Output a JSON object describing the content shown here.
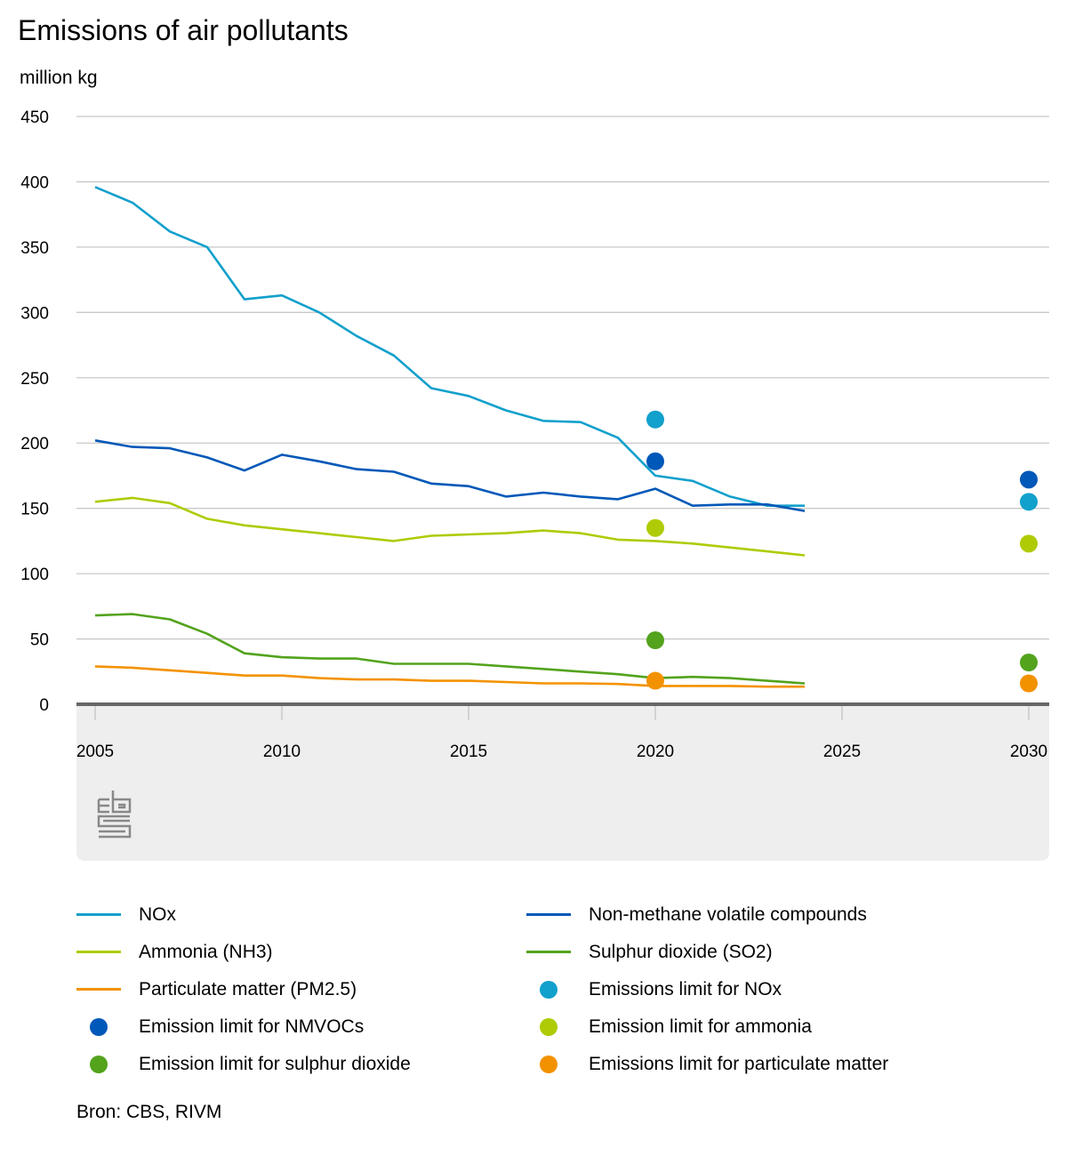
{
  "chart_data": {
    "type": "line",
    "title": "Emissions of air pollutants",
    "ylabel": "million kg",
    "xlabel": "",
    "ylim": [
      0,
      450
    ],
    "yticks": [
      "0",
      "50",
      "100",
      "150",
      "200",
      "250",
      "300",
      "350",
      "400",
      "450"
    ],
    "xlim": [
      2005,
      2030
    ],
    "xticks": [
      "2005",
      "2010",
      "2015",
      "2020",
      "2025",
      "2030"
    ],
    "grid": true,
    "legend_position": "bottom",
    "x": [
      2005,
      2006,
      2007,
      2008,
      2009,
      2010,
      2011,
      2012,
      2013,
      2014,
      2015,
      2016,
      2017,
      2018,
      2019,
      2020,
      2021,
      2022,
      2023,
      2024
    ],
    "series": [
      {
        "name": "NOx",
        "kind": "line",
        "color": "#12a0cc",
        "values": [
          396,
          384,
          362,
          350,
          310,
          313,
          300,
          282,
          267,
          242,
          236,
          225,
          217,
          216,
          204,
          175,
          171,
          159,
          152,
          152
        ]
      },
      {
        "name": "Non-methane volatile compounds",
        "kind": "line",
        "color": "#0058b8",
        "values": [
          202,
          197,
          196,
          189,
          179,
          191,
          186,
          180,
          178,
          169,
          167,
          159,
          162,
          159,
          157,
          165,
          152,
          153,
          153,
          148
        ]
      },
      {
        "name": "Ammonia (NH3)",
        "kind": "line",
        "color": "#afcb05",
        "values": [
          155,
          158,
          154,
          142,
          137,
          134,
          131,
          128,
          125,
          129,
          130,
          131,
          133,
          131,
          126,
          125,
          123,
          120,
          117,
          114
        ]
      },
      {
        "name": "Sulphur dioxide (SO2)",
        "kind": "line",
        "color": "#53a31d",
        "values": [
          68,
          69,
          65,
          54,
          39,
          36,
          35,
          35,
          31,
          31,
          31,
          29,
          27,
          25,
          23,
          20,
          21,
          20,
          18,
          16
        ]
      },
      {
        "name": "Particulate matter (PM2.5)",
        "kind": "line",
        "color": "#f39200",
        "values": [
          29,
          28,
          26,
          24,
          22,
          22,
          20,
          19,
          19,
          18,
          18,
          17,
          16,
          16,
          15.5,
          14,
          14,
          14,
          13.5,
          13.5
        ]
      },
      {
        "name": "Emissions limit for NOx",
        "kind": "point",
        "color": "#12a0cc",
        "points": [
          {
            "x": 2020,
            "y": 218
          },
          {
            "x": 2030,
            "y": 155
          }
        ]
      },
      {
        "name": "Emission limit for NMVOCs",
        "kind": "point",
        "color": "#0058b8",
        "points": [
          {
            "x": 2020,
            "y": 186
          },
          {
            "x": 2030,
            "y": 172
          }
        ]
      },
      {
        "name": "Emission limit for ammonia",
        "kind": "point",
        "color": "#afcb05",
        "points": [
          {
            "x": 2020,
            "y": 135
          },
          {
            "x": 2030,
            "y": 123
          }
        ]
      },
      {
        "name": "Emission limit for sulphur dioxide",
        "kind": "point",
        "color": "#53a31d",
        "points": [
          {
            "x": 2020,
            "y": 49
          },
          {
            "x": 2030,
            "y": 32
          }
        ]
      },
      {
        "name": "Emissions limit for particulate matter",
        "kind": "point",
        "color": "#f39200",
        "points": [
          {
            "x": 2020,
            "y": 18
          },
          {
            "x": 2030,
            "y": 16
          }
        ]
      }
    ],
    "legend": [
      {
        "label": "NOx",
        "kind": "line",
        "color": "#12a0cc"
      },
      {
        "label": "Non-methane volatile compounds",
        "kind": "line",
        "color": "#0058b8"
      },
      {
        "label": "Ammonia (NH3)",
        "kind": "line",
        "color": "#afcb05"
      },
      {
        "label": "Sulphur dioxide (SO2)",
        "kind": "line",
        "color": "#53a31d"
      },
      {
        "label": "Particulate matter (PM2.5)",
        "kind": "line",
        "color": "#f39200"
      },
      {
        "label": "Emissions limit for NOx",
        "kind": "point",
        "color": "#12a0cc"
      },
      {
        "label": "Emission limit for NMVOCs",
        "kind": "point",
        "color": "#0058b8"
      },
      {
        "label": "Emission limit for ammonia",
        "kind": "point",
        "color": "#afcb05"
      },
      {
        "label": "Emission limit for sulphur dioxide",
        "kind": "point",
        "color": "#53a31d"
      },
      {
        "label": "Emissions limit for particulate matter",
        "kind": "point",
        "color": "#f39200"
      }
    ],
    "source": "Bron: CBS, RIVM",
    "logo": "cbs-logo"
  }
}
